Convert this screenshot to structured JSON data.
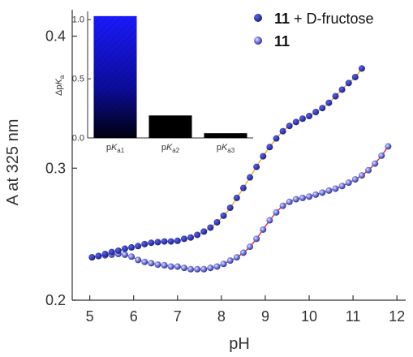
{
  "chart_data": [
    {
      "type": "scatter",
      "xlabel": "pH",
      "ylabel": "A at 325 nm",
      "xlim": [
        4.6,
        12.2
      ],
      "ylim": [
        0.2,
        0.42
      ],
      "x_ticks": [
        5,
        6,
        7,
        8,
        9,
        10,
        11,
        12
      ],
      "y_ticks": [
        0.2,
        0.3,
        0.4
      ],
      "x_tick_labels": [
        "5",
        "6",
        "7",
        "8",
        "9",
        "10",
        "11",
        "12"
      ],
      "y_tick_labels": [
        "0.2",
        "0.3",
        "0.4"
      ],
      "grid": false,
      "legend_position": "top-right",
      "series": [
        {
          "name": "11 + D-fructose",
          "legend_bold": "11",
          "legend_rest": " + D-fructose",
          "marker_color": "#1a1f8c",
          "fit_color": "#f5a623",
          "x": [
            5.05,
            5.2,
            5.35,
            5.5,
            5.65,
            5.8,
            5.95,
            6.1,
            6.25,
            6.4,
            6.55,
            6.7,
            6.85,
            7.0,
            7.15,
            7.3,
            7.45,
            7.6,
            7.75,
            7.9,
            8.05,
            8.2,
            8.35,
            8.5,
            8.65,
            8.8,
            8.95,
            9.1,
            9.25,
            9.4,
            9.55,
            9.7,
            9.85,
            10.0,
            10.15,
            10.3,
            10.45,
            10.6,
            10.75,
            10.9,
            11.05,
            11.2
          ],
          "y": [
            0.2325,
            0.2335,
            0.235,
            0.2365,
            0.2375,
            0.239,
            0.24,
            0.241,
            0.2425,
            0.2435,
            0.244,
            0.2445,
            0.2445,
            0.245,
            0.2465,
            0.2475,
            0.2495,
            0.252,
            0.255,
            0.259,
            0.264,
            0.27,
            0.2775,
            0.285,
            0.293,
            0.301,
            0.309,
            0.316,
            0.3225,
            0.328,
            0.332,
            0.335,
            0.3375,
            0.3395,
            0.3425,
            0.3455,
            0.3495,
            0.3545,
            0.3595,
            0.3645,
            0.369,
            0.3755
          ]
        },
        {
          "name": "11",
          "legend_bold": "11",
          "legend_rest": "",
          "marker_color": "#1a1f8c",
          "marker_highlight": "#b8bcf0",
          "fit_color": "#e8262a",
          "x": [
            5.05,
            5.2,
            5.35,
            5.5,
            5.65,
            5.8,
            5.95,
            6.1,
            6.25,
            6.4,
            6.55,
            6.7,
            6.85,
            7.0,
            7.15,
            7.3,
            7.45,
            7.6,
            7.75,
            7.9,
            8.05,
            8.2,
            8.35,
            8.5,
            8.65,
            8.8,
            8.95,
            9.1,
            9.25,
            9.4,
            9.55,
            9.7,
            9.85,
            10.0,
            10.15,
            10.3,
            10.45,
            10.6,
            10.75,
            10.9,
            11.05,
            11.2,
            11.35,
            11.5,
            11.65,
            11.8
          ],
          "y": [
            0.2325,
            0.2335,
            0.234,
            0.2345,
            0.235,
            0.2345,
            0.233,
            0.2305,
            0.229,
            0.228,
            0.227,
            0.2265,
            0.2255,
            0.2255,
            0.2245,
            0.2235,
            0.2235,
            0.2235,
            0.2245,
            0.2255,
            0.2275,
            0.23,
            0.2325,
            0.236,
            0.2405,
            0.2465,
            0.2535,
            0.2605,
            0.2665,
            0.2715,
            0.2745,
            0.2765,
            0.2775,
            0.2785,
            0.28,
            0.2815,
            0.283,
            0.2845,
            0.2865,
            0.289,
            0.2915,
            0.2945,
            0.2985,
            0.3035,
            0.3095,
            0.3165
          ]
        }
      ]
    },
    {
      "type": "bar",
      "ylabel": "ΔpKa",
      "ylabel_parts": [
        "Δp",
        "K",
        "a"
      ],
      "ylim": [
        0,
        1.07
      ],
      "y_ticks": [
        0.0,
        0.5,
        1.0
      ],
      "y_tick_labels": [
        "0.0",
        "0.5",
        "1.0"
      ],
      "categories": [
        "pKa1",
        "pKa2",
        "pKa3"
      ],
      "category_parts": [
        [
          "p",
          "K",
          "a1"
        ],
        [
          "p",
          "K",
          "a2"
        ],
        [
          "p",
          "K",
          "a3"
        ]
      ],
      "values": [
        1.03,
        0.19,
        0.04
      ],
      "bar_colors": [
        "gradient-blue",
        "#000000",
        "#000000"
      ],
      "grid": false
    }
  ]
}
